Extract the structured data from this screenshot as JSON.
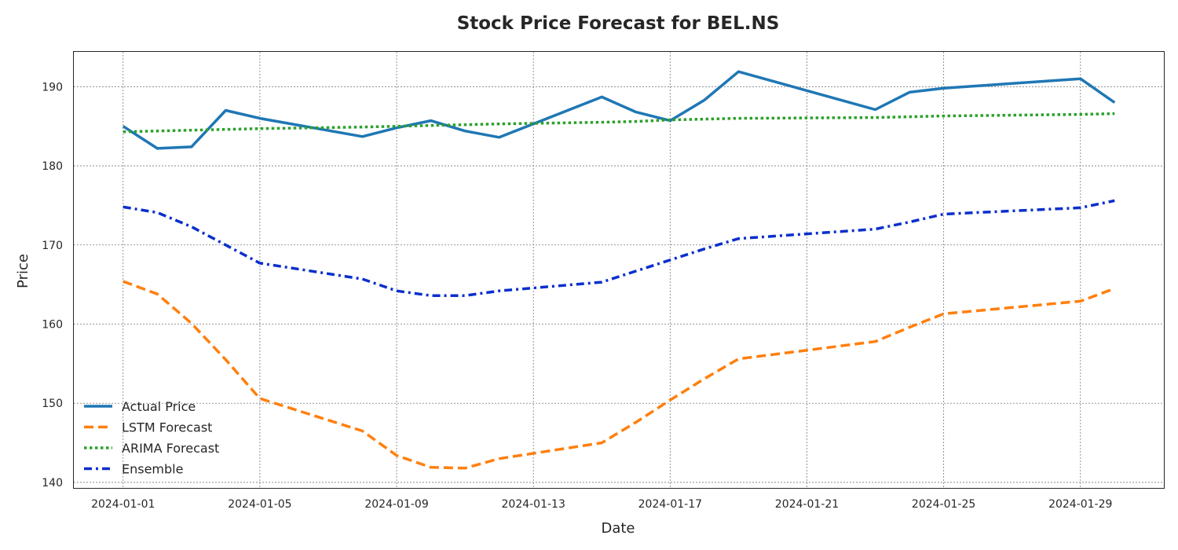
{
  "chart_data": {
    "type": "line",
    "title": "Stock Price Forecast for BEL.NS",
    "xlabel": "Date",
    "ylabel": "Price",
    "x": [
      "2024-01-01",
      "2024-01-02",
      "2024-01-03",
      "2024-01-04",
      "2024-01-05",
      "2024-01-08",
      "2024-01-09",
      "2024-01-10",
      "2024-01-11",
      "2024-01-12",
      "2024-01-15",
      "2024-01-16",
      "2024-01-17",
      "2024-01-18",
      "2024-01-19",
      "2024-01-23",
      "2024-01-24",
      "2024-01-25",
      "2024-01-29",
      "2024-01-30"
    ],
    "x_ticks": [
      "2024-01-01",
      "2024-01-05",
      "2024-01-09",
      "2024-01-13",
      "2024-01-17",
      "2024-01-21",
      "2024-01-25",
      "2024-01-29"
    ],
    "xlim": [
      "2023-12-30T13:24",
      "2024-01-31T10:34"
    ],
    "ylim": [
      139.3,
      194.4
    ],
    "y_ticks": [
      140,
      150,
      160,
      170,
      180,
      190
    ],
    "grid": true,
    "legend_position": "lower-left",
    "series": [
      {
        "name": "Actual Price",
        "color": "#1f77b4",
        "style": "solid",
        "values": [
          185.0,
          182.2,
          182.4,
          187.0,
          186.0,
          183.7,
          184.8,
          185.7,
          184.4,
          183.6,
          188.7,
          186.8,
          185.7,
          188.3,
          191.9,
          187.1,
          189.3,
          189.8,
          191.0,
          188.0
        ]
      },
      {
        "name": "LSTM Forecast",
        "color": "#ff7f0e",
        "style": "dashed",
        "values": [
          165.4,
          163.8,
          160.1,
          155.5,
          150.6,
          146.5,
          143.4,
          141.9,
          141.8,
          143.0,
          145.0,
          147.6,
          150.4,
          153.1,
          155.6,
          157.8,
          159.6,
          161.3,
          162.9,
          164.5
        ]
      },
      {
        "name": "ARIMA Forecast",
        "color": "#2ca02c",
        "style": "dotted",
        "values": [
          184.3,
          184.4,
          184.5,
          184.6,
          184.7,
          184.9,
          185.0,
          185.1,
          185.2,
          185.3,
          185.5,
          185.6,
          185.8,
          185.9,
          186.0,
          186.1,
          186.2,
          186.3,
          186.5,
          186.6
        ]
      },
      {
        "name": "Ensemble",
        "color": "#0a2fcc",
        "style": "dashdot",
        "values": [
          174.8,
          174.1,
          172.3,
          170.0,
          167.7,
          165.7,
          164.2,
          163.6,
          163.6,
          164.2,
          165.3,
          166.7,
          168.1,
          169.5,
          170.8,
          172.0,
          172.9,
          173.9,
          174.7,
          175.6
        ]
      }
    ]
  }
}
